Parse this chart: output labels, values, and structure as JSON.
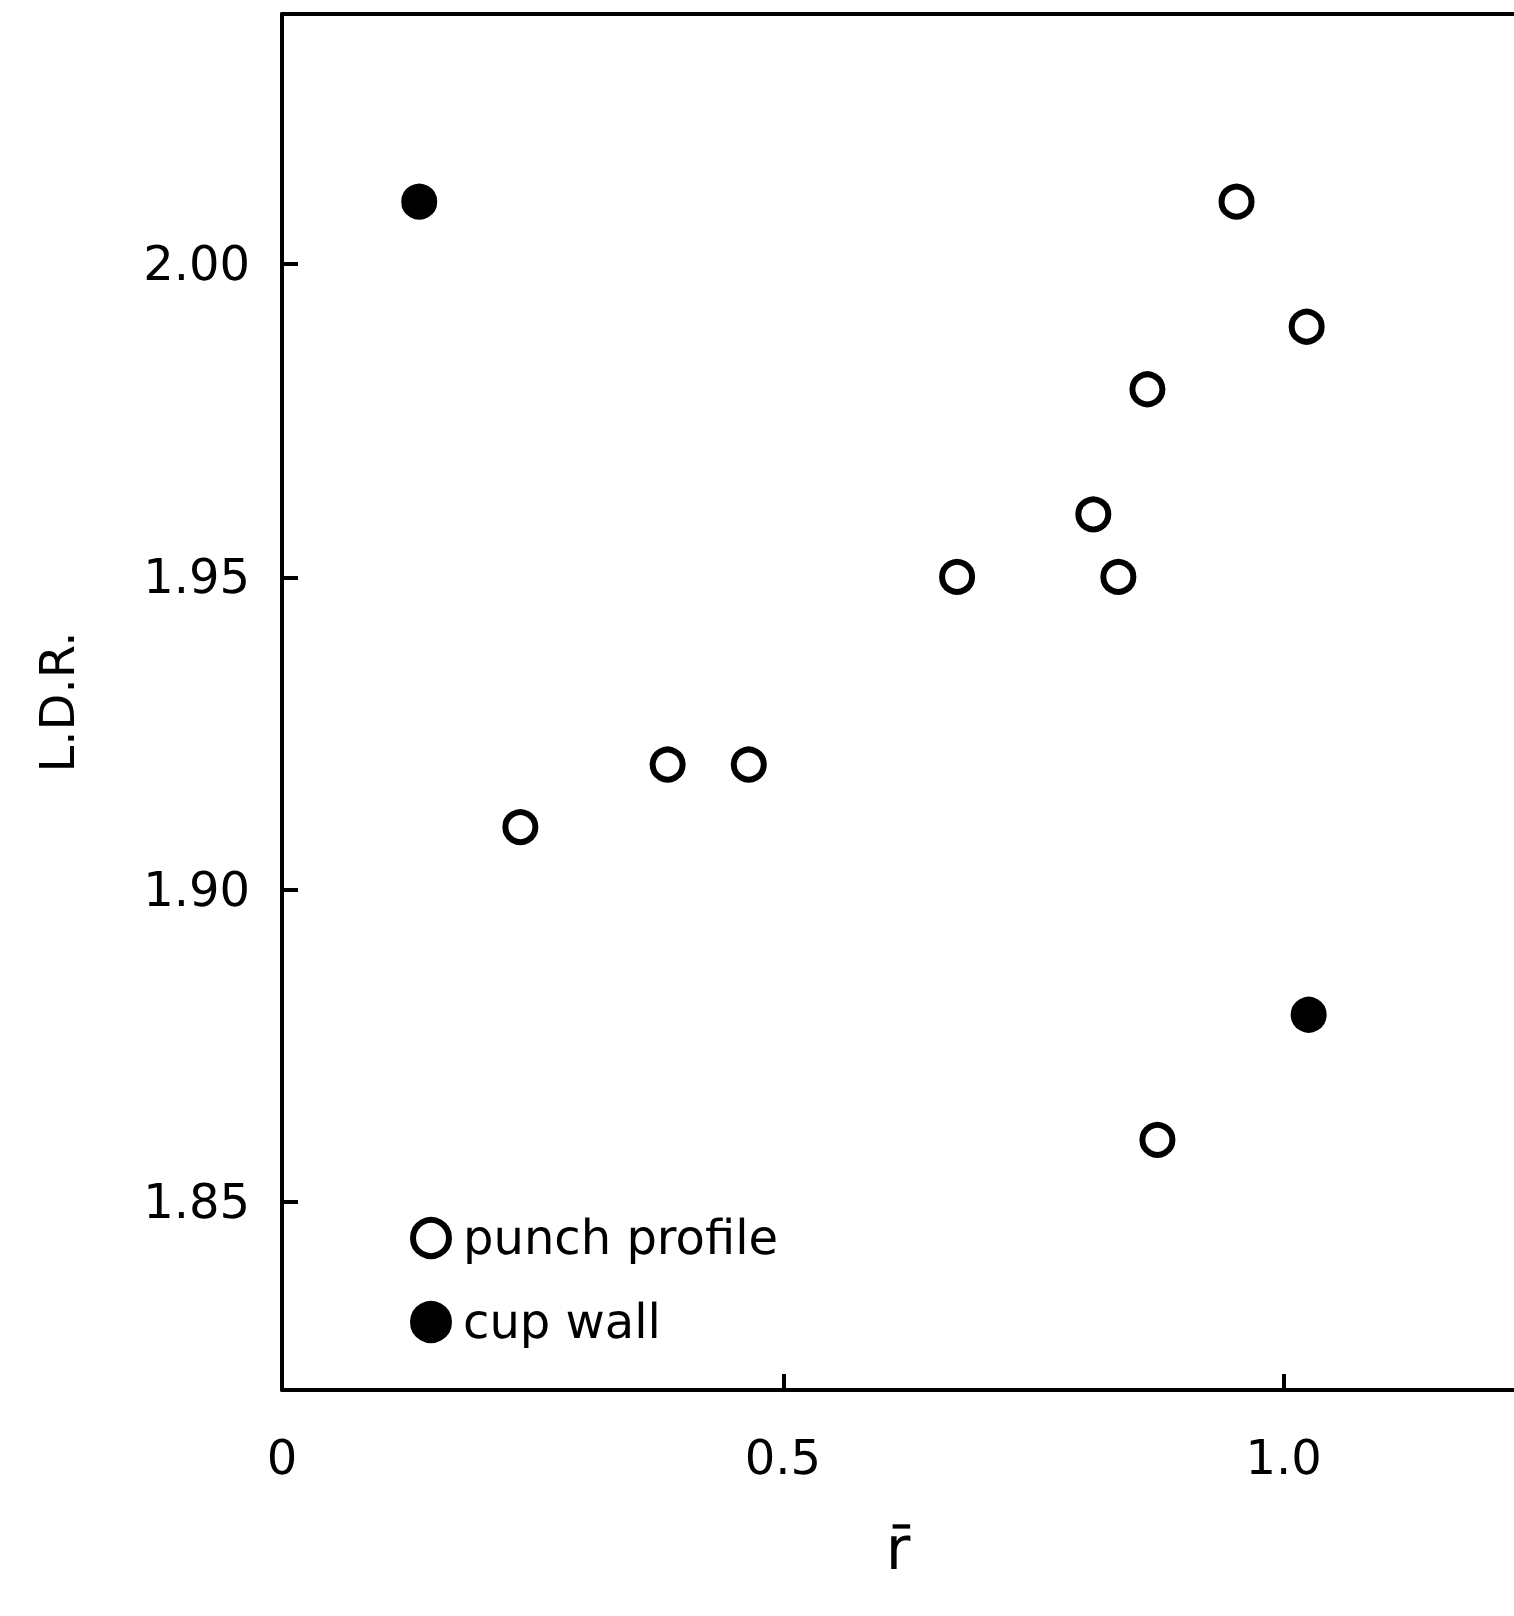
{
  "chart_data": {
    "type": "scatter",
    "xlabel": "r̄",
    "ylabel": "L.D.R.",
    "xlim": [
      0,
      1.23
    ],
    "ylim": [
      1.82,
      2.04
    ],
    "xticks": [
      0,
      0.5,
      {
        "value": 1,
        "label": "1.0"
      }
    ],
    "yticks": [
      1.85,
      {
        "value": 1.9,
        "label": "1.90"
      },
      1.95,
      {
        "value": 2,
        "label": "2.00"
      }
    ],
    "grid": false,
    "legend": "bottom left",
    "series": [
      {
        "name": "punch profile",
        "color": "#ffffff",
        "marker": "circle",
        "x": [
          0.238,
          0.385,
          0.466,
          0.674,
          0.81,
          0.835,
          0.864,
          0.953,
          1.023,
          0.874
        ],
        "values": [
          1.91,
          1.92,
          1.92,
          1.95,
          1.96,
          1.95,
          1.98,
          2.01,
          1.99,
          1.86
        ]
      },
      {
        "name": "cup wall",
        "color": "#000000",
        "marker": "circle",
        "x": [
          0.137,
          1.025
        ],
        "values": [
          2.01,
          1.88
        ]
      }
    ]
  }
}
